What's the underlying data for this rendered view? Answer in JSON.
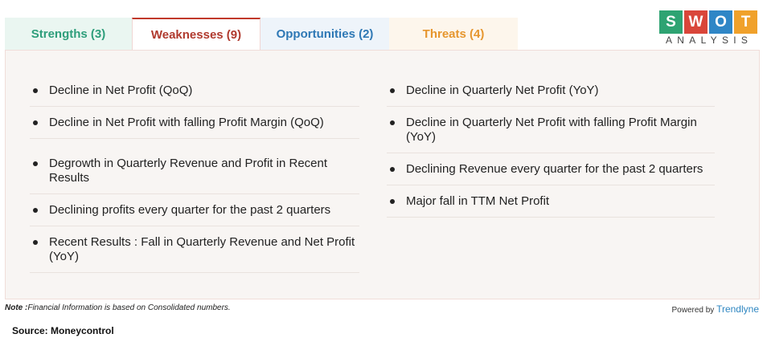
{
  "tabs": [
    {
      "label": "Strengths (3)",
      "color": "#2e9e7b"
    },
    {
      "label": "Weaknesses (9)",
      "color": "#b03a2e"
    },
    {
      "label": "Opportunities (2)",
      "color": "#2e78b5"
    },
    {
      "label": "Threats (4)",
      "color": "#e6962e"
    }
  ],
  "logo": {
    "letters": [
      "S",
      "W",
      "O",
      "T"
    ],
    "colors": [
      "#2ea372",
      "#d9463a",
      "#2f86c6",
      "#f0a12b"
    ],
    "subtitle": "ANALYSIS"
  },
  "weaknesses": {
    "left": [
      "Decline in Net Profit (QoQ)",
      "Decline in Net Profit with falling Profit Margin (QoQ)",
      "Degrowth in Quarterly Revenue and Profit in Recent Results",
      "Declining profits every quarter for the past 2 quarters",
      "Recent Results : Fall in Quarterly Revenue and Net Profit (YoY)"
    ],
    "right": [
      "Decline in Quarterly Net Profit (YoY)",
      "Decline in Quarterly Net Profit with falling Profit Margin (YoY)",
      "Declining Revenue every quarter for the past 2 quarters",
      "Major fall in TTM Net Profit"
    ]
  },
  "footer": {
    "note_label": "Note :",
    "note_text": "Financial Information is based on Consolidated numbers.",
    "powered_by": "Powered by",
    "brand": "Trendlyne",
    "source": "Source: Moneycontrol"
  }
}
